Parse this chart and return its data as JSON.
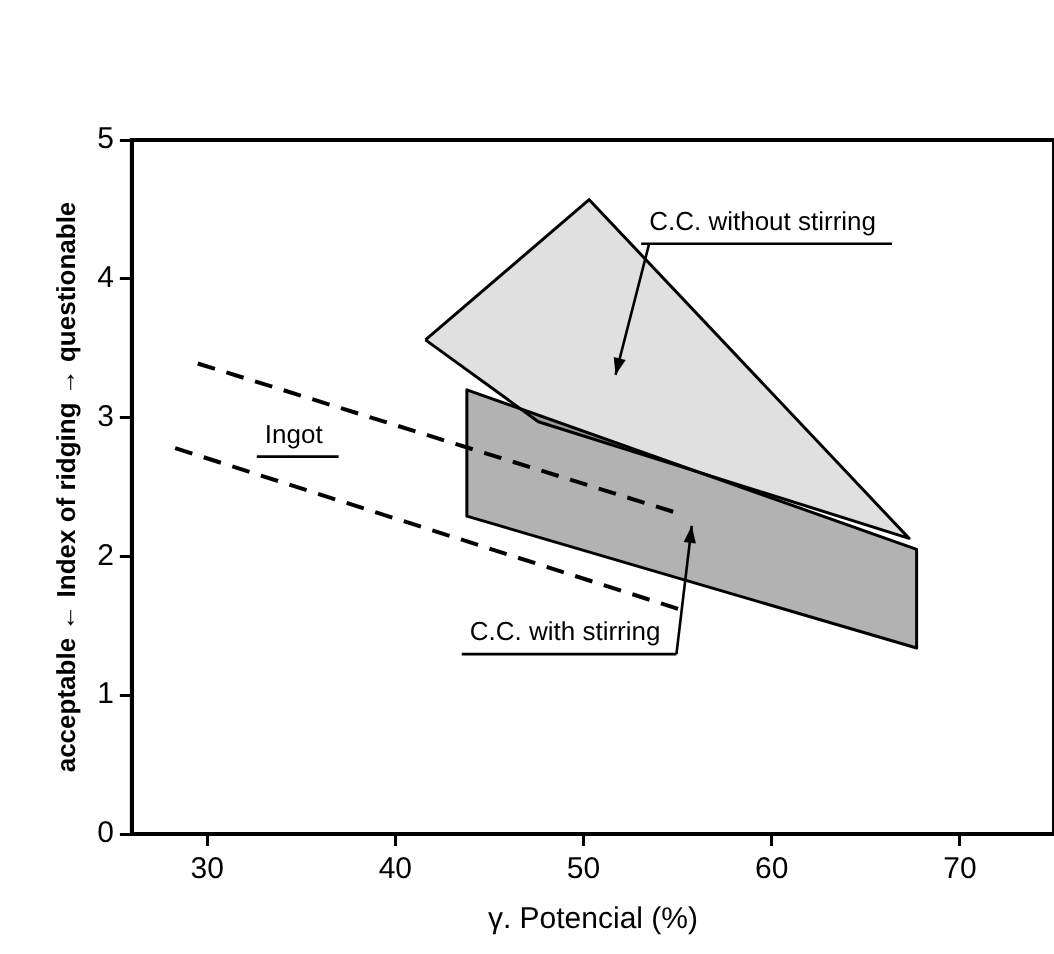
{
  "chart_data": {
    "type": "area",
    "xlabel": "γ. Potencial (%)",
    "ylabel": "acceptable ← Index of ridging → questionable",
    "xlim": [
      26,
      75
    ],
    "xticks": [
      30,
      40,
      50,
      60,
      70
    ],
    "ylim": [
      0,
      5
    ],
    "yticks": [
      0,
      1,
      2,
      3,
      4,
      5
    ],
    "grid": false,
    "legend": false,
    "series": [
      {
        "name": "C.C. without stirring",
        "color": "#000000",
        "x": [
          41.6,
          50.3,
          67.3,
          47.6,
          41.6
        ],
        "values": [
          3.56,
          4.57,
          2.13,
          2.97,
          3.56
        ]
      },
      {
        "name": "C.C. with stirring",
        "color": "#000000",
        "x": [
          43.8,
          43.8,
          67.7,
          67.7,
          43.8
        ],
        "values": [
          3.2,
          2.29,
          1.34,
          2.05,
          3.2
        ]
      },
      {
        "type": "line",
        "line_style": "dashed",
        "color": "#000000",
        "x": [
          29.5,
          54.8
        ],
        "values": [
          3.39,
          2.32
        ]
      },
      {
        "name": "Ingot",
        "type": "line",
        "line_style": "dashed",
        "color": "#000000",
        "x": [
          28.3,
          55.3
        ],
        "values": [
          2.78,
          1.61
        ]
      }
    ]
  }
}
